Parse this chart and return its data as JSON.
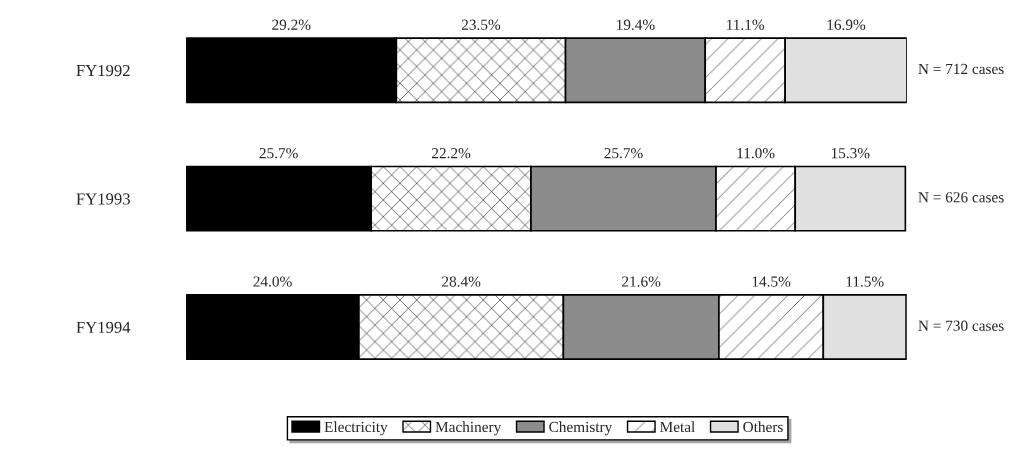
{
  "chart_data": {
    "type": "bar",
    "orientation": "horizontal",
    "stacked": true,
    "categories": [
      "FY1992",
      "FY1993",
      "FY1994"
    ],
    "series": [
      {
        "name": "Electricity",
        "color": "#000000",
        "values": [
          29.2,
          25.7,
          24.0
        ],
        "value_labels": [
          "29.2%",
          "25.7%",
          "24.0%"
        ]
      },
      {
        "name": "Machinery",
        "color": "#000000",
        "values": [
          23.5,
          22.2,
          28.4
        ],
        "value_labels": [
          "23.5%",
          "22.2%",
          "28.4%"
        ]
      },
      {
        "name": "Chemistry",
        "color": "#8c8c8c",
        "values": [
          19.4,
          25.7,
          21.6
        ],
        "value_labels": [
          "19.4%",
          "25.7%",
          "21.6%"
        ]
      },
      {
        "name": "Metal",
        "color": "#000000",
        "values": [
          11.1,
          11.0,
          14.5
        ],
        "value_labels": [
          "11.1%",
          "11.0%",
          "14.5%"
        ]
      },
      {
        "name": "Others",
        "color": "#e0e0e0",
        "values": [
          16.9,
          15.3,
          11.5
        ],
        "value_labels": [
          "16.9%",
          "15.3%",
          "11.5%"
        ]
      }
    ],
    "xlim": [
      0,
      100.1
    ],
    "tick_labels": "y",
    "legend": "bottom",
    "grid": false,
    "annotations": [
      "N = 712 cases",
      "N = 626 cases",
      "N = 730 cases"
    ]
  }
}
